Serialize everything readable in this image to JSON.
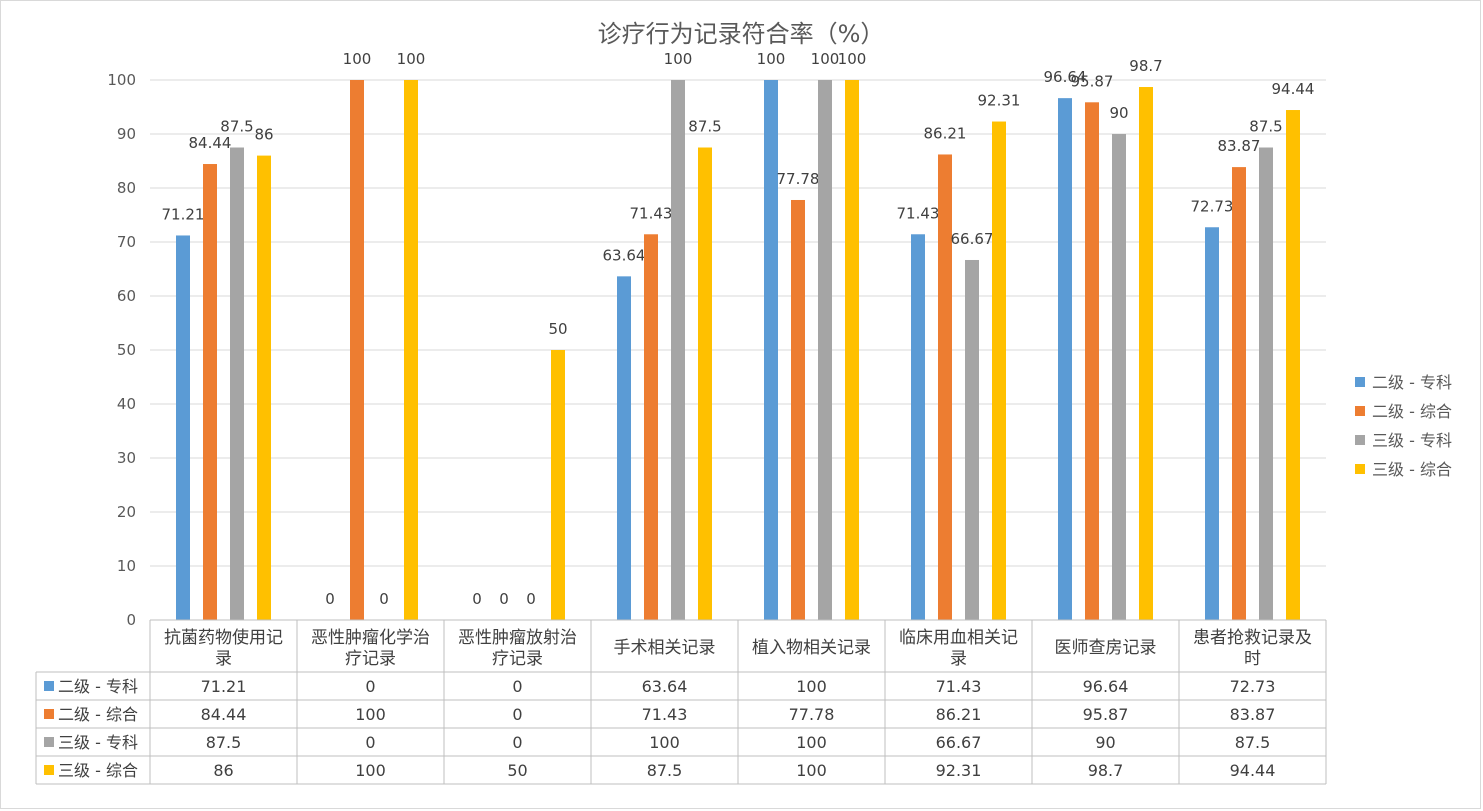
{
  "chart_data": {
    "type": "bar",
    "title": "诊疗行为记录符合率（%）",
    "xlabel": "",
    "ylabel": "",
    "ylim": [
      0,
      100
    ],
    "yticks": [
      0,
      10,
      20,
      30,
      40,
      50,
      60,
      70,
      80,
      90,
      100
    ],
    "grid": true,
    "legend_position": "right",
    "data_table": true,
    "categories": [
      [
        "抗菌药物使用记",
        "录"
      ],
      [
        "恶性肿瘤化学治",
        "疗记录"
      ],
      [
        "恶性肿瘤放射治",
        "疗记录"
      ],
      [
        "手术相关记录"
      ],
      [
        "植入物相关记录"
      ],
      [
        "临床用血相关记",
        "录"
      ],
      [
        "医师查房记录"
      ],
      [
        "患者抢救记录及",
        "时"
      ]
    ],
    "series": [
      {
        "name": "二级 - 专科",
        "color": "#5b9bd5",
        "values": [
          71.21,
          0,
          0,
          63.64,
          100,
          71.43,
          96.64,
          72.73
        ]
      },
      {
        "name": "二级 - 综合",
        "color": "#ed7d31",
        "values": [
          84.44,
          100,
          0,
          71.43,
          77.78,
          86.21,
          95.87,
          83.87
        ]
      },
      {
        "name": "三级 - 专科",
        "color": "#a5a5a5",
        "values": [
          87.5,
          0,
          0,
          100,
          100,
          66.67,
          90,
          87.5
        ]
      },
      {
        "name": "三级 - 综合",
        "color": "#ffc000",
        "values": [
          86,
          100,
          50,
          87.5,
          100,
          92.31,
          98.7,
          94.44
        ]
      }
    ]
  }
}
